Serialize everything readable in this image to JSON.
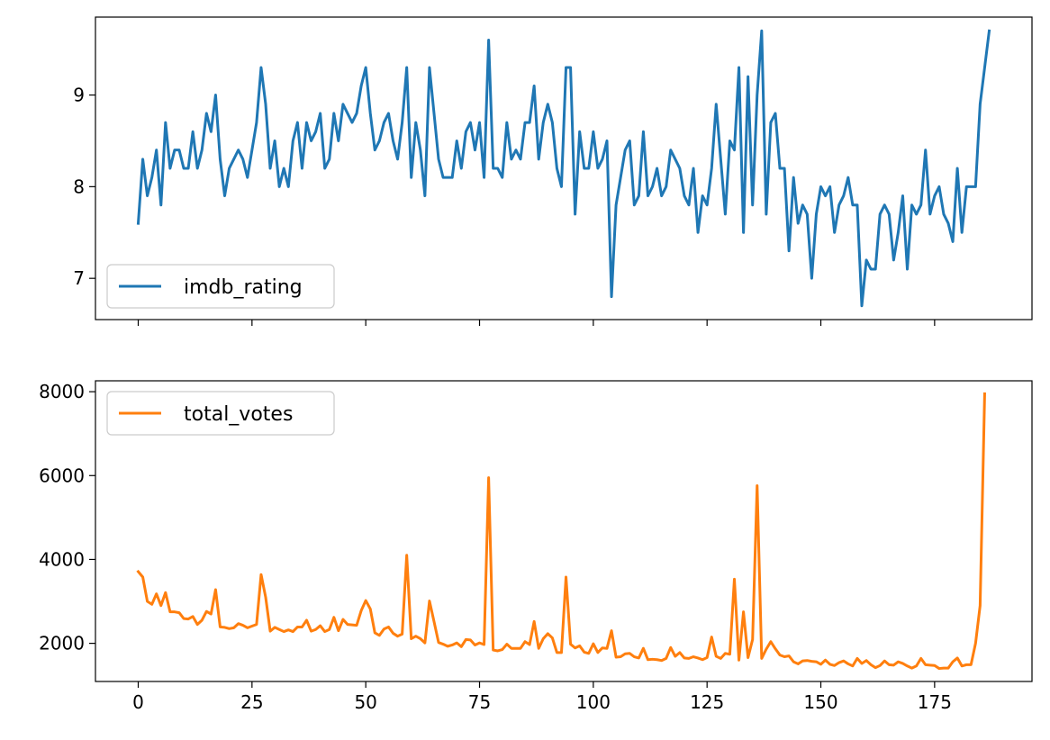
{
  "chart_data": [
    {
      "type": "line",
      "title": "",
      "xlabel": "",
      "ylabel": "",
      "xlim": [
        -9.4,
        196.4
      ],
      "ylim": [
        6.55,
        9.85
      ],
      "xticks": [
        0,
        25,
        50,
        75,
        100,
        125,
        150,
        175
      ],
      "yticks": [
        7,
        8,
        9
      ],
      "legend": "bottom-left",
      "grid": false,
      "series": [
        {
          "name": "imdb_rating",
          "color": "#1f77b4",
          "x_start": 0,
          "values": [
            7.6,
            8.3,
            7.9,
            8.1,
            8.4,
            7.8,
            8.7,
            8.2,
            8.4,
            8.4,
            8.2,
            8.2,
            8.6,
            8.2,
            8.4,
            8.8,
            8.6,
            9.0,
            8.3,
            7.9,
            8.2,
            8.3,
            8.4,
            8.3,
            8.1,
            8.4,
            8.7,
            9.3,
            8.9,
            8.2,
            8.5,
            8.0,
            8.2,
            8.0,
            8.5,
            8.7,
            8.2,
            8.7,
            8.5,
            8.6,
            8.8,
            8.2,
            8.3,
            8.8,
            8.5,
            8.9,
            8.8,
            8.7,
            8.8,
            9.1,
            9.3,
            8.8,
            8.4,
            8.5,
            8.7,
            8.8,
            8.5,
            8.3,
            8.7,
            9.3,
            8.1,
            8.7,
            8.4,
            7.9,
            9.3,
            8.8,
            8.3,
            8.1,
            8.1,
            8.1,
            8.5,
            8.2,
            8.6,
            8.7,
            8.4,
            8.7,
            8.1,
            9.6,
            8.2,
            8.2,
            8.1,
            8.7,
            8.3,
            8.4,
            8.3,
            8.7,
            8.7,
            9.1,
            8.3,
            8.7,
            8.9,
            8.7,
            8.2,
            8.0,
            9.3,
            9.3,
            7.7,
            8.6,
            8.2,
            8.2,
            8.6,
            8.2,
            8.3,
            8.5,
            6.8,
            7.8,
            8.1,
            8.4,
            8.5,
            7.8,
            7.9,
            8.6,
            7.9,
            8.0,
            8.2,
            7.9,
            8.0,
            8.4,
            8.3,
            8.2,
            7.9,
            7.8,
            8.2,
            7.5,
            7.9,
            7.8,
            8.2,
            8.9,
            8.3,
            7.7,
            8.5,
            8.4,
            9.3,
            7.5,
            9.2,
            7.8,
            9.0,
            9.7,
            7.7,
            8.7,
            8.8,
            8.2,
            8.2,
            7.3,
            8.1,
            7.6,
            7.8,
            7.7,
            7.0,
            7.7,
            8.0,
            7.9,
            8.0,
            7.5,
            7.8,
            7.9,
            8.1,
            7.8,
            7.8,
            6.7,
            7.2,
            7.1,
            7.1,
            7.7,
            7.8,
            7.7,
            7.2,
            7.5,
            7.9,
            7.1,
            7.8,
            7.7,
            7.8,
            8.4,
            7.7,
            7.9,
            8.0,
            7.7,
            7.6,
            7.4,
            8.2,
            7.5,
            8.0,
            8.0,
            8.0,
            8.9,
            9.3,
            9.7
          ]
        }
      ]
    },
    {
      "type": "line",
      "title": "",
      "xlabel": "",
      "ylabel": "",
      "xlim": [
        -9.4,
        196.4
      ],
      "ylim": [
        1090,
        8260
      ],
      "xticks": [
        0,
        25,
        50,
        75,
        100,
        125,
        150,
        175
      ],
      "yticks": [
        2000,
        4000,
        6000,
        8000
      ],
      "legend": "top-left",
      "grid": false,
      "series": [
        {
          "name": "total_votes",
          "color": "#ff7f0e",
          "x_start": 0,
          "values": [
            3710,
            3580,
            3000,
            2930,
            3180,
            2900,
            3210,
            2750,
            2750,
            2730,
            2590,
            2580,
            2640,
            2450,
            2550,
            2760,
            2700,
            3280,
            2390,
            2380,
            2350,
            2370,
            2470,
            2430,
            2370,
            2410,
            2450,
            3640,
            3100,
            2290,
            2380,
            2330,
            2280,
            2320,
            2280,
            2390,
            2390,
            2550,
            2290,
            2330,
            2420,
            2280,
            2330,
            2620,
            2300,
            2570,
            2450,
            2440,
            2430,
            2780,
            3020,
            2820,
            2250,
            2190,
            2340,
            2390,
            2240,
            2170,
            2220,
            4100,
            2110,
            2170,
            2110,
            2010,
            3010,
            2520,
            2020,
            1980,
            1930,
            1960,
            2010,
            1920,
            2090,
            2080,
            1960,
            2010,
            1970,
            5950,
            1840,
            1820,
            1850,
            1980,
            1880,
            1880,
            1880,
            2040,
            1970,
            2520,
            1880,
            2110,
            2230,
            2130,
            1780,
            1780,
            3580,
            1980,
            1890,
            1940,
            1790,
            1760,
            1990,
            1780,
            1890,
            1880,
            2300,
            1670,
            1680,
            1750,
            1760,
            1680,
            1650,
            1880,
            1610,
            1620,
            1610,
            1590,
            1640,
            1900,
            1690,
            1780,
            1650,
            1640,
            1680,
            1650,
            1610,
            1660,
            2150,
            1690,
            1640,
            1760,
            1740,
            3530,
            1600,
            2750,
            1660,
            2090,
            5760,
            1640,
            1860,
            2040,
            1870,
            1720,
            1680,
            1700,
            1560,
            1510,
            1580,
            1590,
            1570,
            1560,
            1500,
            1600,
            1500,
            1470,
            1540,
            1580,
            1510,
            1460,
            1640,
            1520,
            1590,
            1490,
            1420,
            1470,
            1580,
            1490,
            1480,
            1560,
            1520,
            1460,
            1410,
            1460,
            1640,
            1490,
            1480,
            1470,
            1400,
            1410,
            1410,
            1560,
            1650,
            1460,
            1490,
            1490,
            2000,
            2900,
            7950
          ]
        }
      ]
    }
  ]
}
